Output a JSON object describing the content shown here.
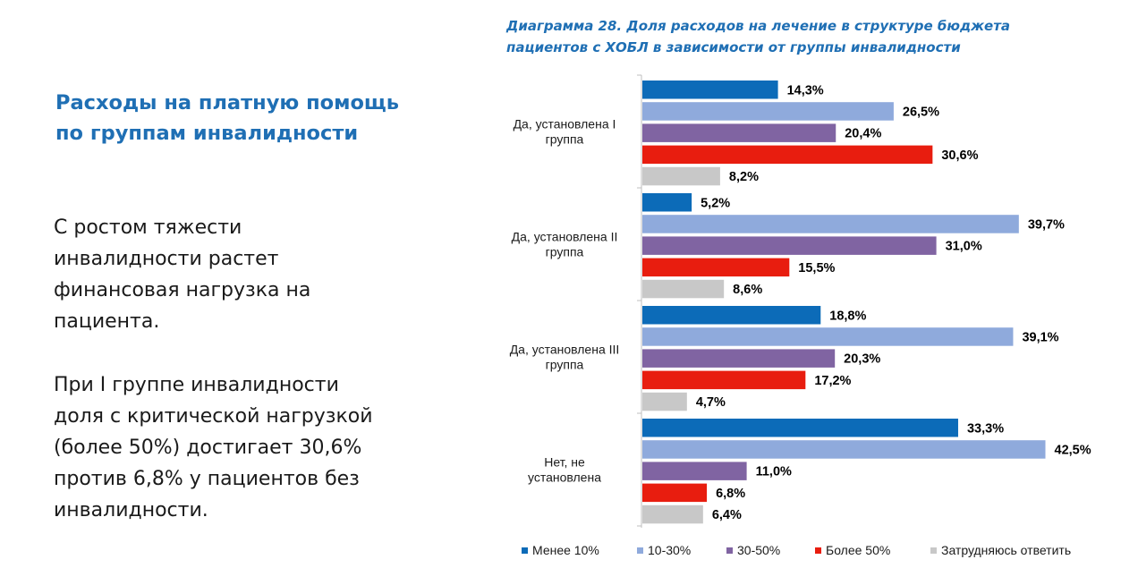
{
  "left": {
    "title": "Расходы на платную помощь\nпо группам инвалидности",
    "paragraph1": "С ростом тяжести\nинвалидности растет\nфинансовая нагрузка на\nпациента.",
    "paragraph2": "При I группе инвалидности\nдоля с критической нагрузкой\n(более 50%) достигает 30,6%\nпротив 6,8% у пациентов без\nинвалидности."
  },
  "chart_data": {
    "type": "bar",
    "orientation": "horizontal",
    "title": "Диаграмма 28. Доля расходов на лечение в структуре бюджета\nпациентов с ХОБЛ в зависимости от группы инвалидности",
    "categories": [
      [
        "Да, установлена I",
        "группа"
      ],
      [
        "Да, установлена II",
        "группа"
      ],
      [
        "Да, установлена III",
        "группа"
      ],
      [
        "Нет, не",
        "установлена"
      ]
    ],
    "series": [
      {
        "name": "Менее 10%",
        "color": "#0c6bb8",
        "values": [
          14.3,
          5.2,
          18.8,
          33.3
        ],
        "labels": [
          "14,3%",
          "5,2%",
          "18,8%",
          "33,3%"
        ]
      },
      {
        "name": "10-30%",
        "color": "#8faadc",
        "values": [
          26.5,
          39.7,
          39.1,
          42.5
        ],
        "labels": [
          "26,5%",
          "39,7%",
          "39,1%",
          "42,5%"
        ]
      },
      {
        "name": "30-50%",
        "color": "#8064a2",
        "values": [
          20.4,
          31.0,
          20.3,
          11.0
        ],
        "labels": [
          "20,4%",
          "31,0%",
          "20,3%",
          "11,0%"
        ]
      },
      {
        "name": "Более 50%",
        "color": "#e81d0f",
        "values": [
          30.6,
          15.5,
          17.2,
          6.8
        ],
        "labels": [
          "30,6%",
          "15,5%",
          "17,2%",
          "6,8%"
        ]
      },
      {
        "name": "Затрудняюсь ответить",
        "color": "#c8c8c8",
        "values": [
          8.2,
          8.6,
          4.7,
          6.4
        ],
        "labels": [
          "8,2%",
          "8,6%",
          "4,7%",
          "6,4%"
        ]
      }
    ],
    "xlim": [
      0,
      45
    ],
    "grid": false,
    "legend_position": "bottom"
  }
}
